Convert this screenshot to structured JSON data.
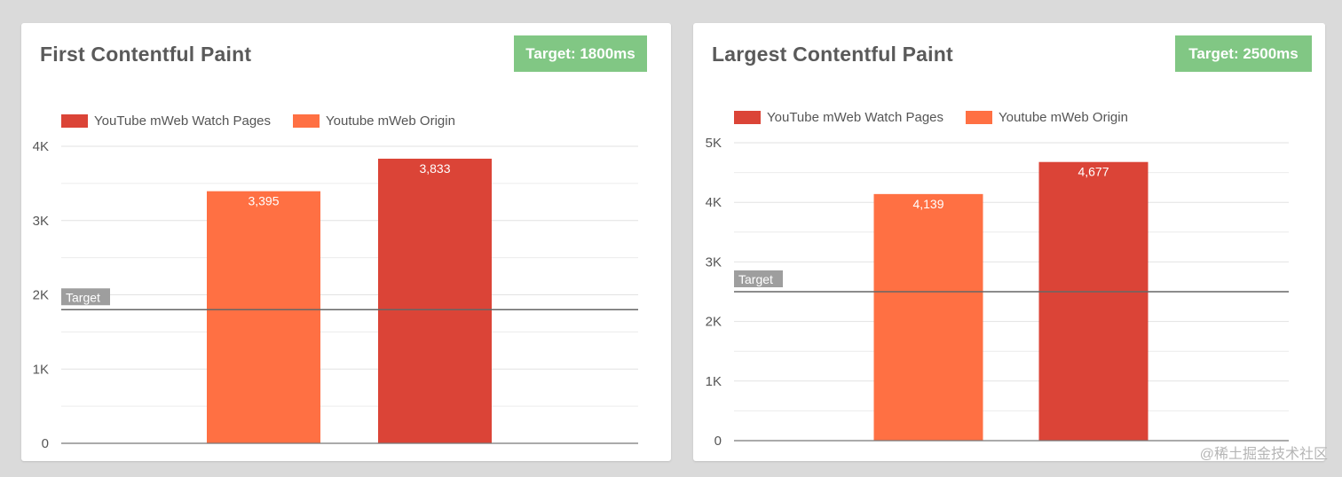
{
  "watermark": "@稀土掘金技术社区",
  "colors": {
    "watch_pages": "#db4437",
    "origin": "#ff7043",
    "target_badge": "#81c784",
    "target_line": "#666666",
    "target_label_bg": "#9e9e9e"
  },
  "chart_data": [
    {
      "type": "bar",
      "title": "First Contentful Paint",
      "target_badge": "Target: 1800ms",
      "target_label": "Target",
      "target_value": 1800,
      "legend": [
        "YouTube mWeb Watch Pages",
        "Youtube mWeb Origin"
      ],
      "categories": [
        "Youtube mWeb Origin",
        "YouTube mWeb Watch Pages"
      ],
      "values": [
        3395,
        3833
      ],
      "value_labels": [
        "3,395",
        "3,833"
      ],
      "bar_colors": [
        "#ff7043",
        "#db4437"
      ],
      "ylim": [
        0,
        4000
      ],
      "yticks": [
        0,
        1000,
        2000,
        3000,
        4000
      ],
      "ytick_labels": [
        "0",
        "1K",
        "2K",
        "3K",
        "4K"
      ],
      "grid": true,
      "legend_position": "top-left"
    },
    {
      "type": "bar",
      "title": "Largest Contentful Paint",
      "target_badge": "Target: 2500ms",
      "target_label": "Target",
      "target_value": 2500,
      "legend": [
        "YouTube mWeb Watch Pages",
        "Youtube mWeb Origin"
      ],
      "categories": [
        "Youtube mWeb Origin",
        "YouTube mWeb Watch Pages"
      ],
      "values": [
        4139,
        4677
      ],
      "value_labels": [
        "4,139",
        "4,677"
      ],
      "bar_colors": [
        "#ff7043",
        "#db4437"
      ],
      "ylim": [
        0,
        5000
      ],
      "yticks": [
        0,
        1000,
        2000,
        3000,
        4000,
        5000
      ],
      "ytick_labels": [
        "0",
        "1K",
        "2K",
        "3K",
        "4K",
        "5K"
      ],
      "grid": true,
      "legend_position": "top-left"
    }
  ]
}
